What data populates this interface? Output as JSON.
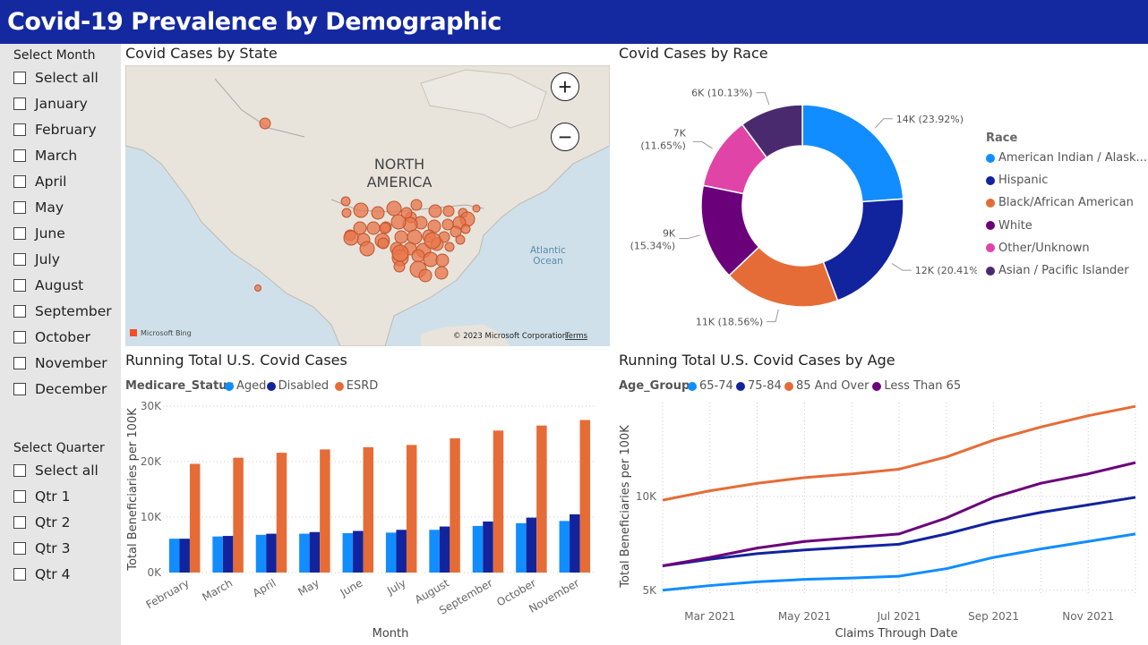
{
  "header": {
    "title": "Covid-19 Prevalence by Demographic",
    "bg_color": "#1428a0"
  },
  "sidebar": {
    "month_title": "Select Month",
    "months": [
      "Select all",
      "January",
      "February",
      "March",
      "April",
      "May",
      "June",
      "July",
      "August",
      "September",
      "October",
      "November",
      "December"
    ],
    "quarter_title": "Select Quarter",
    "quarters": [
      "Select all",
      "Qtr 1",
      "Qtr 2",
      "Qtr 3",
      "Qtr 4"
    ]
  },
  "map": {
    "title": "Covid Cases by State",
    "region_label_1": "NORTH",
    "region_label_2": "AMERICA",
    "ocean_label_1": "Atlantic",
    "ocean_label_2": "Ocean",
    "zoom_in": "+",
    "zoom_out": "−",
    "attribution": "Microsoft Bing",
    "copyright": "© 2023 Microsoft Corporation",
    "terms": "Terms",
    "bubble_color": "#e8744a"
  },
  "race": {
    "title": "Covid Cases by Race",
    "legend_title": "Race",
    "chart_data": {
      "type": "pie",
      "legend_title": "Race",
      "slices": [
        {
          "name": "American Indian / Alask...",
          "value": 14,
          "label": "14K (23.92%)",
          "color": "#118dff"
        },
        {
          "name": "Hispanic",
          "value": 12,
          "label": "12K (20.41%)",
          "color": "#12239e"
        },
        {
          "name": "Black/African American",
          "value": 11,
          "label": "11K (18.56%)",
          "color": "#e66c37"
        },
        {
          "name": "White",
          "value": 9,
          "label": "9K (15.34%)",
          "color": "#6b007b"
        },
        {
          "name": "Other/Unknown",
          "value": 7,
          "label": "7K (11.65%)",
          "color": "#e044a7"
        },
        {
          "name": "Asian / Pacific Islander",
          "value": 6,
          "label": "6K (10.13%)",
          "color": "#4a2a6e"
        }
      ],
      "percents": [
        23.92,
        20.41,
        18.56,
        15.34,
        11.65,
        10.13
      ]
    }
  },
  "bar": {
    "title": "Running Total U.S. Covid Cases",
    "legend_title": "Medicare_Status",
    "chart_data": {
      "type": "bar",
      "categories": [
        "February",
        "March",
        "April",
        "May",
        "June",
        "July",
        "August",
        "September",
        "October",
        "November"
      ],
      "series": [
        {
          "name": "Aged",
          "color": "#118dff",
          "values": [
            6100,
            6500,
            6800,
            7000,
            7100,
            7200,
            7700,
            8400,
            8900,
            9300
          ]
        },
        {
          "name": "Disabled",
          "color": "#12239e",
          "values": [
            6100,
            6600,
            7000,
            7300,
            7500,
            7700,
            8300,
            9200,
            9900,
            10500
          ]
        },
        {
          "name": "ESRD",
          "color": "#e66c37",
          "values": [
            19600,
            20700,
            21600,
            22200,
            22600,
            23000,
            24200,
            25600,
            26500,
            27500
          ]
        }
      ],
      "xlabel": "Month",
      "ylabel": "Total Beneficiaries per 100K",
      "yticks": [
        "0K",
        "10K",
        "20K",
        "30K"
      ],
      "ylim": [
        0,
        30000
      ]
    }
  },
  "line": {
    "title": "Running Total U.S. Covid Cases by Age",
    "legend_title": "Age_Group",
    "chart_data": {
      "type": "line",
      "x": [
        "2021-02",
        "2021-03",
        "2021-04",
        "2021-05",
        "2021-06",
        "2021-07",
        "2021-08",
        "2021-09",
        "2021-10",
        "2021-11",
        "2021-12"
      ],
      "xticks": [
        "Mar 2021",
        "May 2021",
        "Jul 2021",
        "Sep 2021",
        "Nov 2021"
      ],
      "series": [
        {
          "name": "65-74",
          "color": "#118dff",
          "values": [
            5000,
            5250,
            5450,
            5580,
            5650,
            5750,
            6150,
            6750,
            7200,
            7600,
            8000
          ]
        },
        {
          "name": "75-84",
          "color": "#12239e",
          "values": [
            6300,
            6650,
            6950,
            7150,
            7300,
            7450,
            8000,
            8650,
            9150,
            9550,
            9950
          ]
        },
        {
          "name": "85 And Over",
          "color": "#e66c37",
          "values": [
            9800,
            10300,
            10700,
            11000,
            11200,
            11450,
            12100,
            13000,
            13700,
            14300,
            14800
          ]
        },
        {
          "name": "Less Than 65",
          "color": "#6b007b",
          "values": [
            6300,
            6750,
            7250,
            7600,
            7800,
            8000,
            8850,
            9950,
            10700,
            11200,
            11800
          ]
        }
      ],
      "xlabel": "Claims Through Date",
      "ylabel": "Total Beneficiaries per 100K",
      "yticks": [
        {
          "label": "5K",
          "value": 5000
        },
        {
          "label": "10K",
          "value": 10000
        }
      ],
      "ylim": [
        4800,
        15000
      ]
    }
  }
}
